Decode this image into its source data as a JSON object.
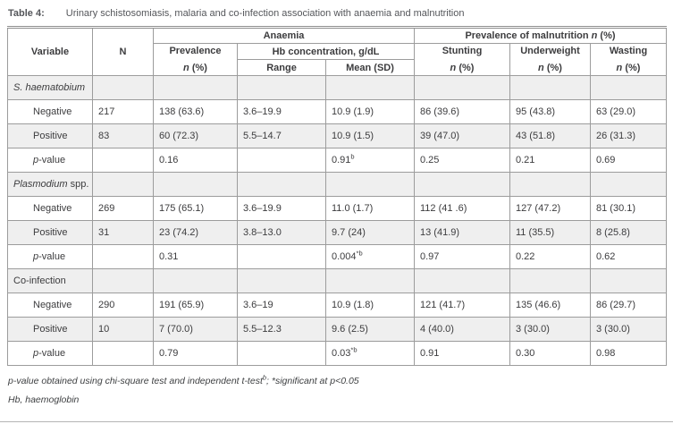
{
  "title": {
    "label": "Table 4:",
    "text": "Urinary schistosomiasis, malaria and co-infection association with anaemia and malnutrition"
  },
  "header": {
    "variable": "Variable",
    "n": "N",
    "anaemia": "Anaemia",
    "malnutrition_prefix": "Prevalence of malnutrition ",
    "italic_n": "n",
    "pct_suffix": " (%)",
    "prevalence": "Prevalence",
    "hb": "Hb concentration, g/dL",
    "range": "Range",
    "mean_sd": "Mean (SD)",
    "stunting": "Stunting",
    "underweight": "Underweight",
    "wasting": "Wasting"
  },
  "sections": [
    {
      "em": "S. haematobium",
      "rest": "",
      "rows": [
        {
          "em": "",
          "label": "Negative",
          "cells": [
            {
              "t": "217",
              "s": ""
            },
            {
              "t": "138 (63.6)",
              "s": ""
            },
            {
              "t": "3.6–19.9",
              "s": ""
            },
            {
              "t": "10.9 (1.9)",
              "s": ""
            },
            {
              "t": "86 (39.6)",
              "s": ""
            },
            {
              "t": "95 (43.8)",
              "s": ""
            },
            {
              "t": "63 (29.0)",
              "s": ""
            }
          ]
        },
        {
          "em": "",
          "label": "Positive",
          "cells": [
            {
              "t": "83",
              "s": ""
            },
            {
              "t": "60 (72.3)",
              "s": ""
            },
            {
              "t": "5.5–14.7",
              "s": ""
            },
            {
              "t": "10.9 (1.5)",
              "s": ""
            },
            {
              "t": "39 (47.0)",
              "s": ""
            },
            {
              "t": "43 (51.8)",
              "s": ""
            },
            {
              "t": "26 (31.3)",
              "s": ""
            }
          ]
        },
        {
          "em": "p",
          "label": "-value",
          "cells": [
            {
              "t": "",
              "s": ""
            },
            {
              "t": "0.16",
              "s": ""
            },
            {
              "t": "",
              "s": ""
            },
            {
              "t": "0.91",
              "s": "b"
            },
            {
              "t": "0.25",
              "s": ""
            },
            {
              "t": "0.21",
              "s": ""
            },
            {
              "t": "0.69",
              "s": ""
            }
          ]
        }
      ]
    },
    {
      "em": "Plasmodium",
      "rest": " spp.",
      "rows": [
        {
          "em": "",
          "label": "Negative",
          "cells": [
            {
              "t": "269",
              "s": ""
            },
            {
              "t": "175 (65.1)",
              "s": ""
            },
            {
              "t": "3.6–19.9",
              "s": ""
            },
            {
              "t": "11.0 (1.7)",
              "s": ""
            },
            {
              "t": "112 (41 .6)",
              "s": ""
            },
            {
              "t": "127 (47.2)",
              "s": ""
            },
            {
              "t": "81 (30.1)",
              "s": ""
            }
          ]
        },
        {
          "em": "",
          "label": "Positive",
          "cells": [
            {
              "t": "31",
              "s": ""
            },
            {
              "t": "23 (74.2)",
              "s": ""
            },
            {
              "t": "3.8–13.0",
              "s": ""
            },
            {
              "t": "9.7 (24)",
              "s": ""
            },
            {
              "t": "13 (41.9)",
              "s": ""
            },
            {
              "t": "11 (35.5)",
              "s": ""
            },
            {
              "t": "8 (25.8)",
              "s": ""
            }
          ]
        },
        {
          "em": "p",
          "label": "-value",
          "cells": [
            {
              "t": "",
              "s": ""
            },
            {
              "t": "0.31",
              "s": ""
            },
            {
              "t": "",
              "s": ""
            },
            {
              "t": "0.004",
              "s": "*b"
            },
            {
              "t": "0.97",
              "s": ""
            },
            {
              "t": "0.22",
              "s": ""
            },
            {
              "t": "0.62",
              "s": ""
            }
          ]
        }
      ]
    },
    {
      "em": "",
      "rest": "Co-infection",
      "rows": [
        {
          "em": "",
          "label": "Negative",
          "cells": [
            {
              "t": "290",
              "s": ""
            },
            {
              "t": "191 (65.9)",
              "s": ""
            },
            {
              "t": "3.6–19",
              "s": ""
            },
            {
              "t": "10.9 (1.8)",
              "s": ""
            },
            {
              "t": "121 (41.7)",
              "s": ""
            },
            {
              "t": "135 (46.6)",
              "s": ""
            },
            {
              "t": "86 (29.7)",
              "s": ""
            }
          ]
        },
        {
          "em": "",
          "label": "Positive",
          "cells": [
            {
              "t": "10",
              "s": ""
            },
            {
              "t": "7 (70.0)",
              "s": ""
            },
            {
              "t": "5.5–12.3",
              "s": ""
            },
            {
              "t": "9.6 (2.5)",
              "s": ""
            },
            {
              "t": "4 (40.0)",
              "s": ""
            },
            {
              "t": "3 (30.0)",
              "s": ""
            },
            {
              "t": "3 (30.0)",
              "s": ""
            }
          ]
        },
        {
          "em": "p",
          "label": "-value",
          "cells": [
            {
              "t": "",
              "s": ""
            },
            {
              "t": "0.79",
              "s": ""
            },
            {
              "t": "",
              "s": ""
            },
            {
              "t": "0.03",
              "s": "*b"
            },
            {
              "t": "0.91",
              "s": ""
            },
            {
              "t": "0.30",
              "s": ""
            },
            {
              "t": "0.98",
              "s": ""
            }
          ]
        }
      ]
    }
  ],
  "footnotes": {
    "stats_main": "p-value obtained using chi-square test and independent t-test",
    "stats_sup": "b",
    "stats_rest": "; *significant at p<0.05",
    "hb": "Hb, haemoglobin"
  }
}
